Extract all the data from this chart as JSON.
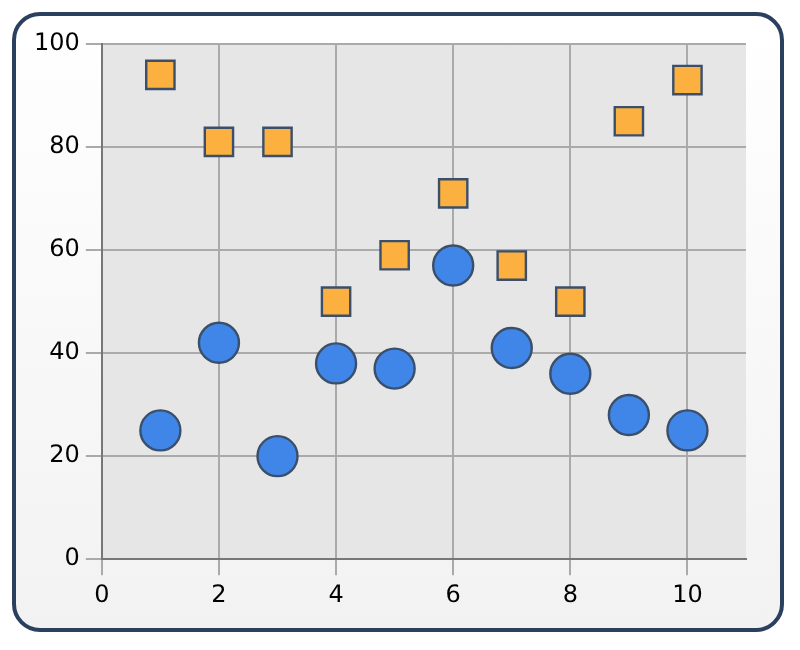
{
  "chart_data": {
    "type": "scatter",
    "x": [
      1,
      2,
      3,
      4,
      5,
      6,
      7,
      8,
      9,
      10
    ],
    "series": [
      {
        "color": "#3f86e8",
        "marker": "circle",
        "values": [
          25,
          42,
          20,
          38,
          37,
          57,
          41,
          36,
          28,
          25
        ]
      },
      {
        "color": "#fbb040",
        "marker": "square",
        "values": [
          94,
          81,
          81,
          50,
          59,
          71,
          57,
          50,
          85,
          93
        ]
      }
    ],
    "xlim": [
      0,
      11
    ],
    "xticks": [
      0,
      2,
      4,
      6,
      8,
      10
    ],
    "ylim": [
      0,
      100
    ],
    "yticks": [
      0,
      20,
      40,
      60,
      80,
      100
    ],
    "grid": true,
    "legend": false
  }
}
